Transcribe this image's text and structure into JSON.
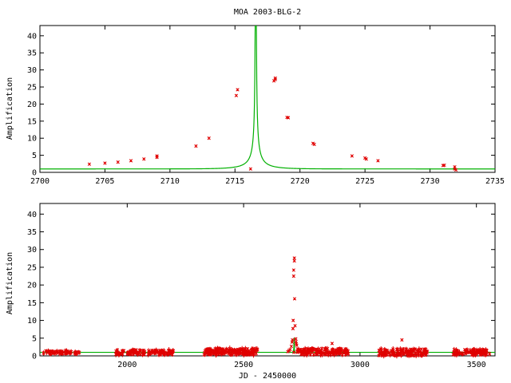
{
  "chart_data": [
    {
      "type": "scatter",
      "title": "MOA 2003-BLG-2",
      "xlabel": "",
      "ylabel": "Amplification",
      "xlim": [
        2700,
        2735
      ],
      "ylim": [
        0,
        43
      ],
      "xticks": [
        2700,
        2705,
        2710,
        2715,
        2720,
        2725,
        2730,
        2735
      ],
      "yticks": [
        0,
        5,
        10,
        15,
        20,
        25,
        30,
        35,
        40
      ],
      "model": {
        "t0": 2716.6,
        "u0": 0.001,
        "tE": 2.05
      },
      "series": [
        {
          "style": "points",
          "color": "#e00000",
          "points": [
            [
              2703.8,
              2.4
            ],
            [
              2705.0,
              2.7
            ],
            [
              2706.0,
              3.0
            ],
            [
              2707.0,
              3.4
            ],
            [
              2708.0,
              3.9
            ],
            [
              2709.0,
              4.4
            ],
            [
              2709.0,
              4.8
            ],
            [
              2712.0,
              7.7
            ],
            [
              2713.0,
              10.0
            ],
            [
              2715.1,
              22.5
            ],
            [
              2715.2,
              24.2
            ],
            [
              2716.2,
              1.0
            ],
            [
              2718.0,
              26.8
            ],
            [
              2718.1,
              27.6
            ],
            [
              2718.1,
              27.2
            ],
            [
              2719.0,
              16.1
            ],
            [
              2719.1,
              16.0
            ],
            [
              2721.0,
              8.5
            ],
            [
              2721.1,
              8.2
            ],
            [
              2724.0,
              4.8
            ],
            [
              2725.0,
              4.2
            ],
            [
              2725.1,
              3.9
            ],
            [
              2726.0,
              3.4
            ],
            [
              2731.0,
              2.0
            ],
            [
              2731.1,
              2.1
            ],
            [
              2731.9,
              1.0
            ],
            [
              2731.9,
              1.6
            ],
            [
              2732.0,
              0.7
            ]
          ]
        }
      ]
    },
    {
      "type": "scatter",
      "title": "",
      "xlabel": "JD - 2450000",
      "ylabel": "Amplification",
      "xlim": [
        1625,
        3580
      ],
      "ylim": [
        0,
        43
      ],
      "xticks": [
        2000,
        2500,
        3000,
        3500
      ],
      "yticks": [
        0,
        5,
        10,
        15,
        20,
        25,
        30,
        35,
        40
      ],
      "model": {
        "t0": 2716.6,
        "u0": 0.001,
        "tE": 2.05
      },
      "series": [
        {
          "style": "points",
          "color": "#e00000",
          "clusters": [
            {
              "from": 1640,
              "to": 1760,
              "count": 50,
              "base": 1.0,
              "spread": 0.5
            },
            {
              "from": 1770,
              "to": 1800,
              "count": 8,
              "base": 1.0,
              "spread": 0.3
            },
            {
              "from": 1950,
              "to": 2200,
              "count": 120,
              "base": 1.0,
              "spread": 0.7
            },
            {
              "from": 2330,
              "to": 2560,
              "count": 160,
              "base": 1.2,
              "spread": 0.9
            },
            {
              "from": 2730,
              "to": 2950,
              "count": 140,
              "base": 1.2,
              "spread": 0.9
            },
            {
              "from": 3080,
              "to": 3290,
              "count": 120,
              "base": 1.0,
              "spread": 1.0
            },
            {
              "from": 3400,
              "to": 3560,
              "count": 90,
              "base": 1.0,
              "spread": 0.8
            }
          ],
          "points": [
            [
              2705,
              2.7
            ],
            [
              2708,
              3.9
            ],
            [
              2712,
              7.7
            ],
            [
              2713,
              10.0
            ],
            [
              2715,
              22.5
            ],
            [
              2715,
              24.2
            ],
            [
              2716,
              1.0
            ],
            [
              2718,
              26.8
            ],
            [
              2718,
              27.6
            ],
            [
              2719,
              16.1
            ],
            [
              2721,
              8.5
            ],
            [
              2724,
              4.8
            ],
            [
              2726,
              3.4
            ],
            [
              2731,
              2.0
            ],
            [
              2732,
              1.0
            ],
            [
              2700,
              1.8
            ],
            [
              2695,
              1.5
            ],
            [
              2690,
              1.2
            ],
            [
              2710,
              4.5
            ],
            [
              2725,
              4.0
            ],
            [
              2728,
              3.0
            ],
            [
              2740,
              1.8
            ],
            [
              2750,
              1.4
            ],
            [
              3180,
              4.5
            ],
            [
              2880,
              3.5
            ]
          ]
        }
      ]
    }
  ]
}
